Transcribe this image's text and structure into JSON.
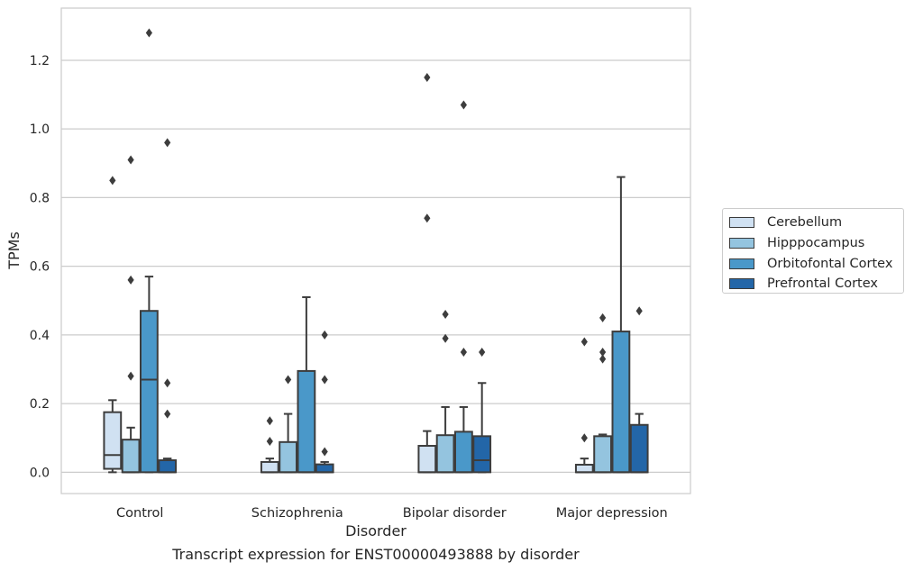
{
  "chart_data": {
    "type": "box",
    "xlabel": "Disorder",
    "ylabel": "TPMs",
    "caption": "Transcript expression for ENST00000493888 by disorder",
    "ylim": [
      -0.062,
      1.352
    ],
    "yticks": [
      0.0,
      0.2,
      0.4,
      0.6,
      0.8,
      1.0,
      1.2
    ],
    "ytick_labels": [
      "0.0",
      "0.2",
      "0.4",
      "0.6",
      "0.8",
      "1.0",
      "1.2"
    ],
    "grid": "horizontal",
    "legend_position": "right",
    "categories": [
      "Control",
      "Schizophrenia",
      "Bipolar disorder",
      "Major depression"
    ],
    "series": [
      {
        "name": "Cerebellum",
        "color": "#d0e1f2",
        "boxes": [
          {
            "whisker_low": 0.0,
            "q1": 0.01,
            "median": 0.05,
            "q3": 0.175,
            "whisker_high": 0.21,
            "outliers": [
              0.85
            ]
          },
          {
            "whisker_low": 0.0,
            "q1": 0.0,
            "median": 0.0,
            "q3": 0.03,
            "whisker_high": 0.04,
            "outliers": [
              0.09,
              0.15
            ]
          },
          {
            "whisker_low": 0.0,
            "q1": 0.0,
            "median": 0.0,
            "q3": 0.077,
            "whisker_high": 0.12,
            "outliers": [
              0.74,
              1.15
            ]
          },
          {
            "whisker_low": 0.0,
            "q1": 0.0,
            "median": 0.0,
            "q3": 0.022,
            "whisker_high": 0.04,
            "outliers": [
              0.1,
              0.38
            ]
          }
        ]
      },
      {
        "name": "Hipppocampus",
        "color": "#94c4df",
        "boxes": [
          {
            "whisker_low": 0.0,
            "q1": 0.0,
            "median": 0.0,
            "q3": 0.095,
            "whisker_high": 0.13,
            "outliers": [
              0.28,
              0.56,
              0.91
            ]
          },
          {
            "whisker_low": 0.0,
            "q1": 0.0,
            "median": 0.0,
            "q3": 0.088,
            "whisker_high": 0.17,
            "outliers": [
              0.27
            ]
          },
          {
            "whisker_low": 0.0,
            "q1": 0.0,
            "median": 0.0,
            "q3": 0.108,
            "whisker_high": 0.19,
            "outliers": [
              0.39,
              0.46
            ]
          },
          {
            "whisker_low": 0.0,
            "q1": 0.0,
            "median": 0.0,
            "q3": 0.105,
            "whisker_high": 0.11,
            "outliers": [
              0.33,
              0.35,
              0.45
            ]
          }
        ]
      },
      {
        "name": "Orbitofontal Cortex",
        "color": "#4a98c9",
        "boxes": [
          {
            "whisker_low": 0.0,
            "q1": 0.0,
            "median": 0.27,
            "q3": 0.47,
            "whisker_high": 0.57,
            "outliers": [
              1.28
            ]
          },
          {
            "whisker_low": 0.0,
            "q1": 0.0,
            "median": 0.0,
            "q3": 0.295,
            "whisker_high": 0.51,
            "outliers": []
          },
          {
            "whisker_low": 0.0,
            "q1": 0.0,
            "median": 0.0,
            "q3": 0.118,
            "whisker_high": 0.19,
            "outliers": [
              0.35,
              1.07
            ]
          },
          {
            "whisker_low": 0.0,
            "q1": 0.0,
            "median": 0.0,
            "q3": 0.41,
            "whisker_high": 0.86,
            "outliers": []
          }
        ]
      },
      {
        "name": "Prefrontal Cortex",
        "color": "#2366a8",
        "boxes": [
          {
            "whisker_low": 0.0,
            "q1": 0.0,
            "median": 0.0,
            "q3": 0.035,
            "whisker_high": 0.04,
            "outliers": [
              0.17,
              0.26,
              0.96
            ]
          },
          {
            "whisker_low": 0.0,
            "q1": 0.0,
            "median": 0.0,
            "q3": 0.023,
            "whisker_high": 0.03,
            "outliers": [
              0.06,
              0.27,
              0.4
            ]
          },
          {
            "whisker_low": 0.0,
            "q1": 0.0,
            "median": 0.035,
            "q3": 0.105,
            "whisker_high": 0.26,
            "outliers": [
              0.35
            ]
          },
          {
            "whisker_low": 0.0,
            "q1": 0.0,
            "median": 0.0,
            "q3": 0.138,
            "whisker_high": 0.17,
            "outliers": [
              0.47
            ]
          }
        ]
      }
    ]
  }
}
